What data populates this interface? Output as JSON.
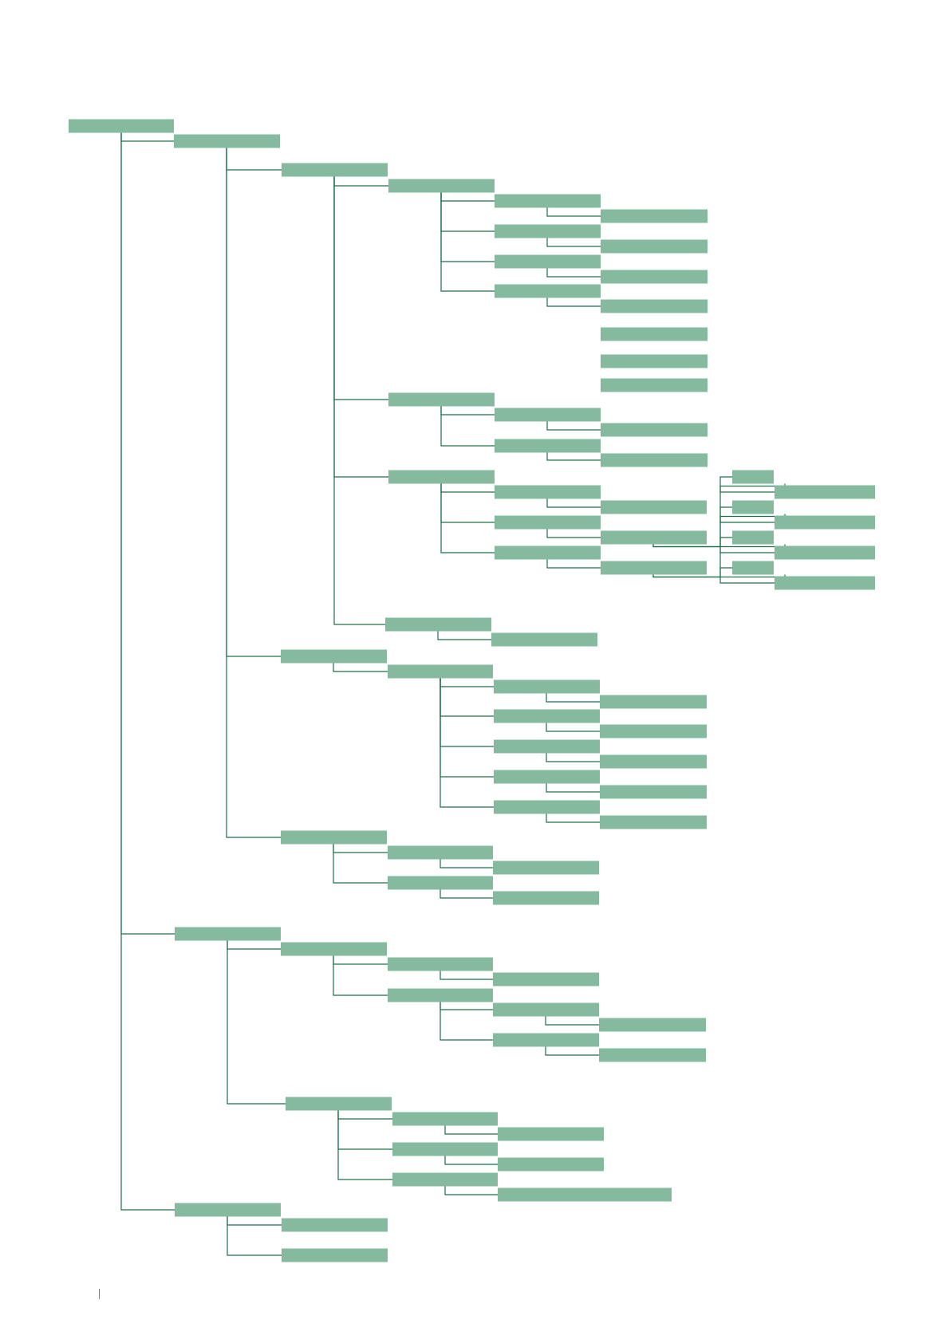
{
  "diagram": {
    "type": "tree",
    "orientation": "left-to-right",
    "box_labels_visible": false,
    "colors": {
      "box_fill": "#86BA9E",
      "connector": "#1F6E4A",
      "background": "#FFFFFF"
    },
    "tree": {
      "id": "root",
      "children": [
        {
          "id": "n1",
          "children": [
            {
              "id": "n1-1",
              "children": [
                {
                  "id": "n1-1-1",
                  "children": [
                    {
                      "id": "n1-1-1-1",
                      "children": [
                        {
                          "id": "n1-1-1-1-1"
                        }
                      ]
                    },
                    {
                      "id": "n1-1-1-2",
                      "children": [
                        {
                          "id": "n1-1-1-2-1"
                        }
                      ]
                    },
                    {
                      "id": "n1-1-1-3",
                      "children": [
                        {
                          "id": "n1-1-1-3-1"
                        }
                      ]
                    },
                    {
                      "id": "n1-1-1-4",
                      "children": [
                        {
                          "id": "n1-1-1-4-1"
                        }
                      ]
                    }
                  ]
                },
                {
                  "id": "n1-1-2",
                  "children": [
                    {
                      "id": "n1-1-2-1",
                      "children": [
                        {
                          "id": "n1-1-2-1-1"
                        }
                      ]
                    },
                    {
                      "id": "n1-1-2-2",
                      "children": [
                        {
                          "id": "n1-1-2-2-1"
                        }
                      ]
                    }
                  ]
                },
                {
                  "id": "n1-1-3",
                  "children": [
                    {
                      "id": "n1-1-3-1",
                      "children": [
                        {
                          "id": "n1-1-3-1-1"
                        }
                      ]
                    },
                    {
                      "id": "n1-1-3-2",
                      "children": [
                        {
                          "id": "n1-1-3-2-1",
                          "children": [
                            {
                              "id": "n1-1-3-2-1-a",
                              "children": [
                                {
                                  "id": "n1-1-3-2-1-a-1"
                                }
                              ]
                            },
                            {
                              "id": "n1-1-3-2-1-b",
                              "children": [
                                {
                                  "id": "n1-1-3-2-1-b-1"
                                }
                              ]
                            }
                          ]
                        }
                      ]
                    },
                    {
                      "id": "n1-1-3-3",
                      "children": [
                        {
                          "id": "n1-1-3-3-1",
                          "children": [
                            {
                              "id": "n1-1-3-3-1-a",
                              "children": [
                                {
                                  "id": "n1-1-3-3-1-a-1"
                                }
                              ]
                            },
                            {
                              "id": "n1-1-3-3-1-b",
                              "children": [
                                {
                                  "id": "n1-1-3-3-1-b-1"
                                }
                              ]
                            }
                          ]
                        }
                      ]
                    },
                    {
                      "id": "n1-1-3-4",
                      "children": [
                        {
                          "id": "n1-1-3-4-1"
                        }
                      ]
                    }
                  ]
                },
                {
                  "id": "n1-1-4",
                  "children": [
                    {
                      "id": "n1-1-4-1"
                    }
                  ]
                }
              ]
            },
            {
              "id": "n1-2",
              "children": [
                {
                  "id": "n1-2-1",
                  "children": [
                    {
                      "id": "n1-2-1-1",
                      "children": [
                        {
                          "id": "n1-2-1-1-1"
                        }
                      ]
                    },
                    {
                      "id": "n1-2-1-2",
                      "children": [
                        {
                          "id": "n1-2-1-2-1"
                        }
                      ]
                    },
                    {
                      "id": "n1-2-1-3",
                      "children": [
                        {
                          "id": "n1-2-1-3-1"
                        }
                      ]
                    },
                    {
                      "id": "n1-2-1-4",
                      "children": [
                        {
                          "id": "n1-2-1-4-1"
                        }
                      ]
                    },
                    {
                      "id": "n1-2-1-5",
                      "children": [
                        {
                          "id": "n1-2-1-5-1"
                        }
                      ]
                    }
                  ]
                }
              ]
            },
            {
              "id": "n1-3",
              "children": [
                {
                  "id": "n1-3-1",
                  "children": [
                    {
                      "id": "n1-3-1-1"
                    }
                  ]
                },
                {
                  "id": "n1-3-2",
                  "children": [
                    {
                      "id": "n1-3-2-1"
                    }
                  ]
                }
              ]
            }
          ]
        },
        {
          "id": "n2",
          "children": [
            {
              "id": "n2-1",
              "children": [
                {
                  "id": "n2-1-1",
                  "children": [
                    {
                      "id": "n2-1-1-1"
                    }
                  ]
                },
                {
                  "id": "n2-1-2",
                  "children": [
                    {
                      "id": "n2-1-2-1",
                      "children": [
                        {
                          "id": "n2-1-2-1-1"
                        }
                      ]
                    },
                    {
                      "id": "n2-1-2-2",
                      "children": [
                        {
                          "id": "n2-1-2-2-1"
                        }
                      ]
                    }
                  ]
                }
              ]
            },
            {
              "id": "n2-2",
              "children": [
                {
                  "id": "n2-2-1",
                  "children": [
                    {
                      "id": "n2-2-1-1"
                    }
                  ]
                },
                {
                  "id": "n2-2-2",
                  "children": [
                    {
                      "id": "n2-2-2-1"
                    }
                  ]
                },
                {
                  "id": "n2-2-3",
                  "children": [
                    {
                      "id": "n2-2-3-1"
                    }
                  ]
                }
              ]
            }
          ]
        },
        {
          "id": "n3",
          "children": [
            {
              "id": "n3-1"
            },
            {
              "id": "n3-2"
            }
          ]
        }
      ]
    }
  }
}
